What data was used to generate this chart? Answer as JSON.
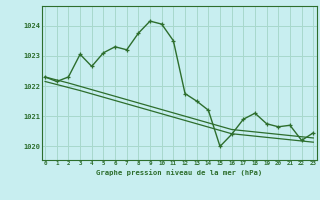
{
  "title": "Graphe pression niveau de la mer (hPa)",
  "background_color": "#c8eef0",
  "grid_color": "#a8d8cc",
  "line_color": "#2d6e2d",
  "x": [
    0,
    1,
    2,
    3,
    4,
    5,
    6,
    7,
    8,
    9,
    10,
    11,
    12,
    13,
    14,
    15,
    16,
    17,
    18,
    19,
    20,
    21,
    22,
    23
  ],
  "y_main": [
    1022.3,
    1022.15,
    1022.3,
    1023.05,
    1022.65,
    1023.1,
    1023.3,
    1023.2,
    1023.75,
    1024.15,
    1024.05,
    1023.5,
    1021.75,
    1021.5,
    1021.2,
    1020.0,
    1020.4,
    1020.9,
    1021.1,
    1020.75,
    1020.65,
    1020.7,
    1020.2,
    1020.45
  ],
  "y_linear1": [
    1022.3,
    1022.2,
    1022.1,
    1021.99,
    1021.88,
    1021.77,
    1021.66,
    1021.55,
    1021.44,
    1021.33,
    1021.22,
    1021.11,
    1021.0,
    1020.89,
    1020.78,
    1020.67,
    1020.56,
    1020.52,
    1020.48,
    1020.44,
    1020.4,
    1020.36,
    1020.32,
    1020.28
  ],
  "y_linear2": [
    1022.15,
    1022.05,
    1021.95,
    1021.85,
    1021.74,
    1021.63,
    1021.52,
    1021.41,
    1021.3,
    1021.19,
    1021.08,
    1020.97,
    1020.86,
    1020.75,
    1020.64,
    1020.53,
    1020.42,
    1020.38,
    1020.34,
    1020.3,
    1020.26,
    1020.22,
    1020.18,
    1020.14
  ],
  "ylim": [
    1019.55,
    1024.65
  ],
  "yticks": [
    1020,
    1021,
    1022,
    1023,
    1024
  ],
  "xlim": [
    -0.3,
    23.3
  ],
  "xticks": [
    0,
    1,
    2,
    3,
    4,
    5,
    6,
    7,
    8,
    9,
    10,
    11,
    12,
    13,
    14,
    15,
    16,
    17,
    18,
    19,
    20,
    21,
    22,
    23
  ]
}
